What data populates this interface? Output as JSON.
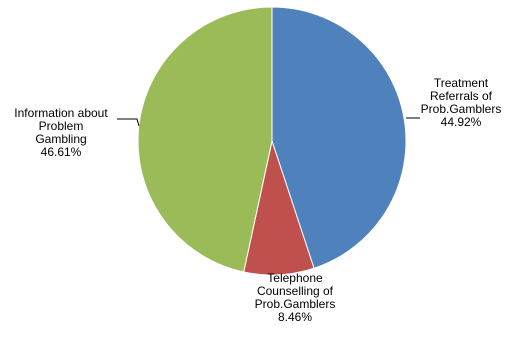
{
  "chart_data": {
    "type": "pie",
    "slices": [
      {
        "label": "Treatment Referrals of Prob.Gamblers",
        "label_lines": [
          "Treatment",
          "Referrals of",
          "Prob.Gamblers"
        ],
        "value": 44.92,
        "value_label": "44.92%",
        "color": "#4F81BD"
      },
      {
        "label": "Telephone Counselling of Prob.Gamblers",
        "label_lines": [
          "Telephone",
          "Counselling of",
          "Prob.Gamblers"
        ],
        "value": 8.46,
        "value_label": "8.46%",
        "color": "#C0504D"
      },
      {
        "label": "Information about Problem Gambling",
        "label_lines": [
          "Information about",
          "Problem",
          "Gambling"
        ],
        "value": 46.61,
        "value_label": "46.61%",
        "color": "#9BBB59"
      }
    ],
    "start_angle": "12 o'clock",
    "direction": "clockwise",
    "legend": "none"
  }
}
